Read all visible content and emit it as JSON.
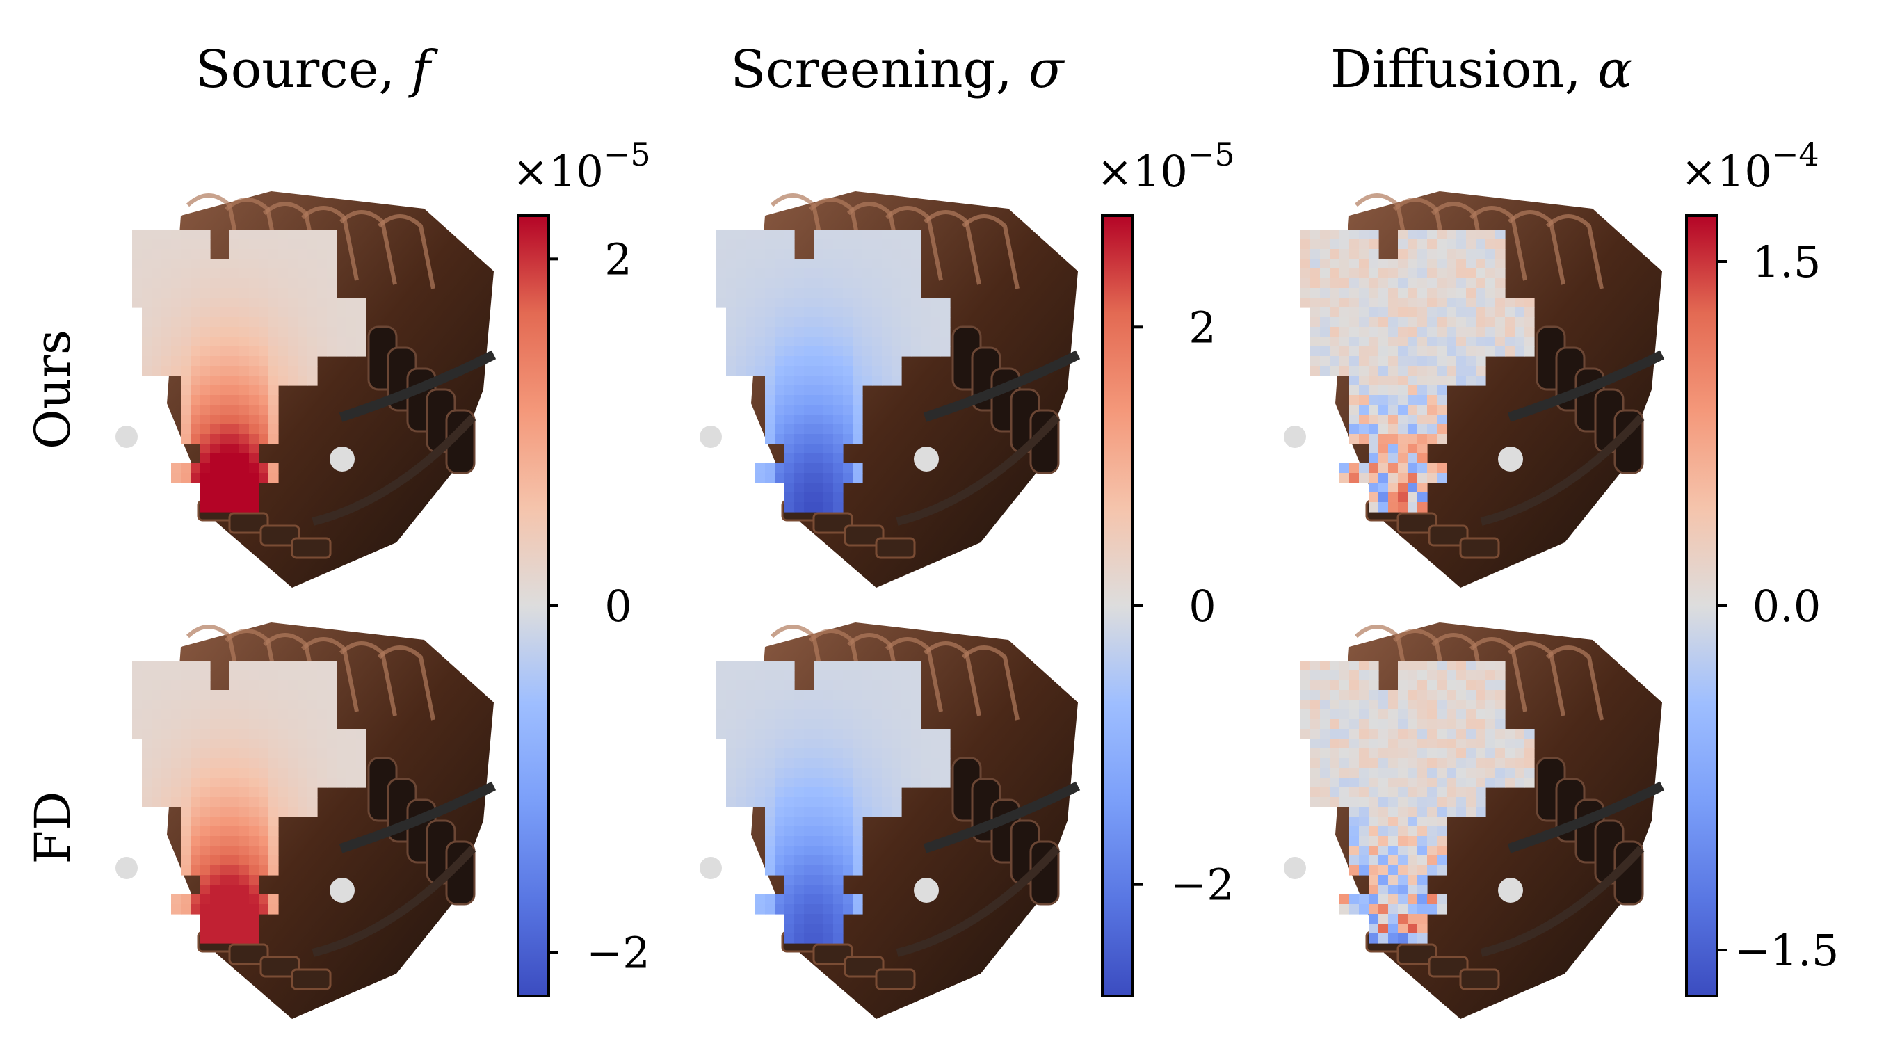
{
  "columns": [
    {
      "id": "source",
      "title": "Source, ",
      "symbol": "f",
      "multiplier": "×10",
      "exponent": "−5",
      "ticks": [
        {
          "value": 2,
          "label": "2"
        },
        {
          "value": 0,
          "label": "0"
        },
        {
          "value": -2,
          "label": "−2"
        }
      ],
      "range": [
        -2.25,
        2.25
      ]
    },
    {
      "id": "screening",
      "title": "Screening, ",
      "symbol": "σ",
      "multiplier": "×10",
      "exponent": "−5",
      "ticks": [
        {
          "value": 2,
          "label": "2"
        },
        {
          "value": 0,
          "label": "0"
        },
        {
          "value": -2,
          "label": "−2"
        }
      ],
      "range": [
        -2.8,
        2.8
      ]
    },
    {
      "id": "diffusion",
      "title": "Diffusion, ",
      "symbol": "α",
      "multiplier": "×10",
      "exponent": "−4",
      "ticks": [
        {
          "value": 1.5,
          "label": "1.5"
        },
        {
          "value": 0,
          "label": "0.0"
        },
        {
          "value": -1.5,
          "label": "−1.5"
        }
      ],
      "range": [
        -1.7,
        1.7
      ]
    }
  ],
  "rows": [
    {
      "id": "ours",
      "label": "Ours"
    },
    {
      "id": "fd",
      "label": "FD"
    }
  ],
  "colormap": "coolwarm",
  "colors": {
    "low": "#3b4cc0",
    "mid": "#dddddd",
    "high": "#b40426",
    "engine": "#5a3222"
  }
}
